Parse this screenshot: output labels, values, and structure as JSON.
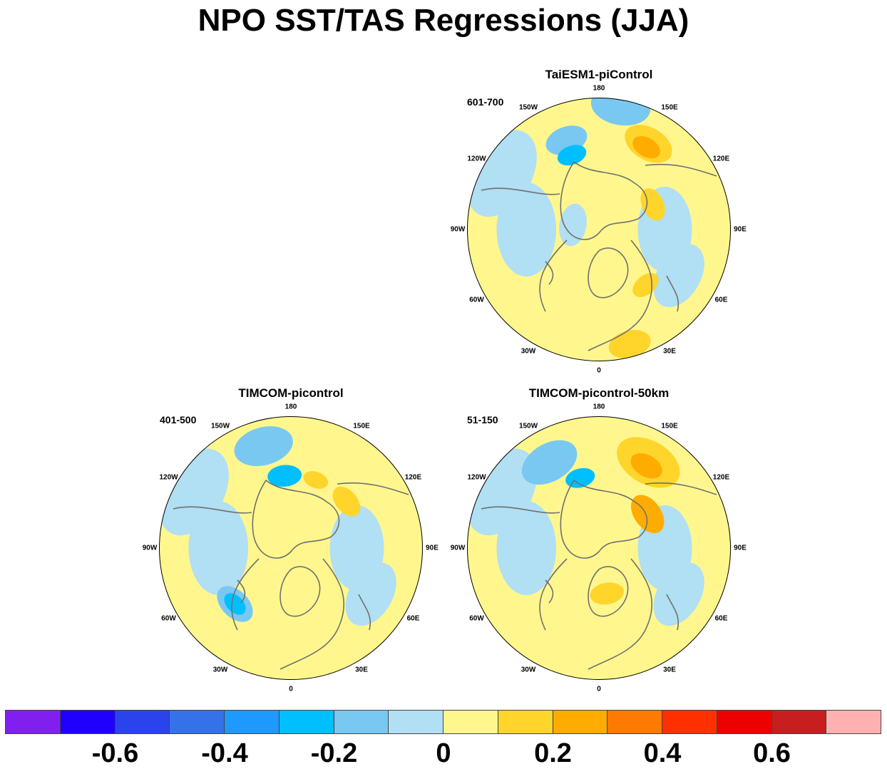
{
  "title": "NPO SST/TAS Regressions (JJA)",
  "panels": [
    {
      "id": "taiesm",
      "title": "TaiESM1-piControl",
      "period": "601-700",
      "warm": [
        [
          150,
          0.75,
          0.6,
          "#ffd52b"
        ],
        [
          150,
          0.72,
          0.35,
          "#ffac00"
        ],
        [
          115,
          0.45,
          0.4,
          "#ffd52b"
        ],
        [
          40,
          0.55,
          0.35,
          "#ffd52b"
        ],
        [
          15,
          0.9,
          0.5,
          "#ffd52b"
        ]
      ],
      "cold": [
        [
          -160,
          0.72,
          0.5,
          "#79c8f1"
        ],
        [
          -160,
          0.6,
          0.35,
          "#00bfff"
        ],
        [
          170,
          0.95,
          0.7,
          "#79c8f1"
        ],
        [
          -100,
          0.2,
          0.5,
          "#b1dff3"
        ]
      ]
    },
    {
      "id": "timcom",
      "title": "TIMCOM-picontrol",
      "period": "401-500",
      "warm": [
        [
          130,
          0.55,
          0.4,
          "#ffd52b"
        ],
        [
          160,
          0.55,
          0.3,
          "#ffd52b"
        ]
      ],
      "cold": [
        [
          -165,
          0.8,
          0.7,
          "#79c8f1"
        ],
        [
          -175,
          0.55,
          0.4,
          "#00bfff"
        ],
        [
          -45,
          0.6,
          0.5,
          "#79c8f1"
        ],
        [
          -45,
          0.6,
          0.3,
          "#00bfff"
        ]
      ]
    },
    {
      "id": "timcom50",
      "title": "TIMCOM-picontrol-50km",
      "period": "51-150",
      "warm": [
        [
          150,
          0.75,
          0.8,
          "#ffd52b"
        ],
        [
          150,
          0.72,
          0.4,
          "#ffac00"
        ],
        [
          125,
          0.45,
          0.5,
          "#ffac00"
        ],
        [
          10,
          0.35,
          0.4,
          "#ffd52b"
        ]
      ],
      "cold": [
        [
          -150,
          0.75,
          0.7,
          "#79c8f1"
        ],
        [
          -165,
          0.55,
          0.35,
          "#00bfff"
        ]
      ]
    }
  ],
  "longitude_labels": [
    "180",
    "150E",
    "120E",
    "90E",
    "60E",
    "30E",
    "0",
    "30W",
    "60W",
    "90W",
    "120W",
    "150W"
  ],
  "colorbar": {
    "colors": [
      "#8120ee",
      "#1f00ff",
      "#2a43ec",
      "#3572ea",
      "#1e9aff",
      "#00bfff",
      "#79c8f1",
      "#b1dff3",
      "#fff78e",
      "#ffd52b",
      "#ffac00",
      "#ff7a00",
      "#ff3000",
      "#ed0000",
      "#c81e1e",
      "#ffb1b1"
    ],
    "labels": [
      "-0.6",
      "-0.4",
      "-0.2",
      "0",
      "0.2",
      "0.4",
      "0.6"
    ]
  },
  "colors": {
    "land_outline": "#707070",
    "ocean_neutral": "#fff78e",
    "weak_cool": "#b1dff3"
  }
}
